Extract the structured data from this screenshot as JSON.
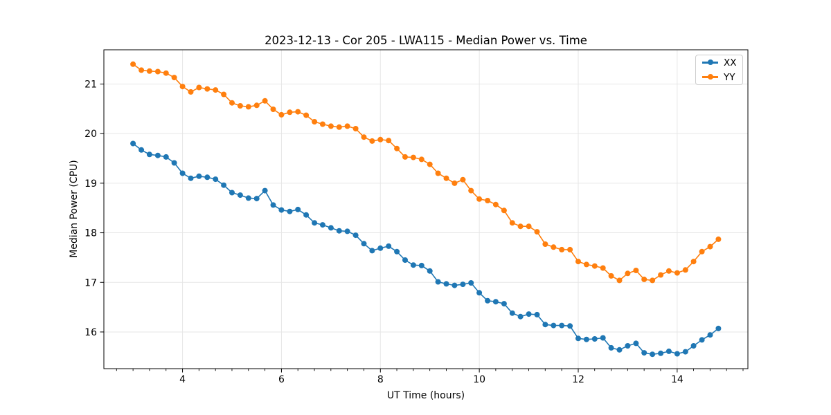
{
  "chart_data": {
    "type": "line",
    "title": "2023-12-13 - Cor 205 - LWA115 - Median Power vs. Time",
    "xlabel": "UT Time (hours)",
    "ylabel": "Median Power (CPU)",
    "xlim": [
      2.41,
      15.43
    ],
    "ylim": [
      15.26,
      21.69
    ],
    "x_major_ticks": [
      4,
      6,
      8,
      10,
      12,
      14
    ],
    "y_major_ticks": [
      16,
      17,
      18,
      19,
      20,
      21
    ],
    "x_minor_step": 0.3333,
    "grid": true,
    "grid_color": "#e6e6e6",
    "legend_position": "upper right",
    "marker": "circle",
    "x": [
      3.0,
      3.167,
      3.333,
      3.5,
      3.667,
      3.833,
      4.0,
      4.167,
      4.333,
      4.5,
      4.667,
      4.833,
      5.0,
      5.167,
      5.333,
      5.5,
      5.667,
      5.833,
      6.0,
      6.167,
      6.333,
      6.5,
      6.667,
      6.833,
      7.0,
      7.167,
      7.333,
      7.5,
      7.667,
      7.833,
      8.0,
      8.167,
      8.333,
      8.5,
      8.667,
      8.833,
      9.0,
      9.167,
      9.333,
      9.5,
      9.667,
      9.833,
      10.0,
      10.167,
      10.333,
      10.5,
      10.667,
      10.833,
      11.0,
      11.167,
      11.333,
      11.5,
      11.667,
      11.833,
      12.0,
      12.167,
      12.333,
      12.5,
      12.667,
      12.833,
      13.0,
      13.167,
      13.333,
      13.5,
      13.667,
      13.833,
      14.0,
      14.167,
      14.333,
      14.5,
      14.667,
      14.833
    ],
    "series": [
      {
        "name": "XX",
        "color": "#1f77b4",
        "values": [
          19.8,
          19.67,
          19.58,
          19.56,
          19.53,
          19.41,
          19.2,
          19.1,
          19.14,
          19.12,
          19.08,
          18.96,
          18.81,
          18.76,
          18.7,
          18.69,
          18.85,
          18.56,
          18.46,
          18.43,
          18.47,
          18.36,
          18.2,
          18.16,
          18.1,
          18.04,
          18.03,
          17.95,
          17.78,
          17.64,
          17.69,
          17.73,
          17.62,
          17.45,
          17.35,
          17.34,
          17.23,
          17.01,
          16.97,
          16.94,
          16.96,
          16.99,
          16.79,
          16.63,
          16.61,
          16.57,
          16.38,
          16.31,
          16.36,
          16.35,
          16.15,
          16.13,
          16.13,
          16.12,
          15.87,
          15.85,
          15.86,
          15.88,
          15.68,
          15.64,
          15.72,
          15.77,
          15.58,
          15.55,
          15.57,
          15.61,
          15.56,
          15.6,
          15.72,
          15.84,
          15.94,
          16.07
        ]
      },
      {
        "name": "YY",
        "color": "#ff7f0e",
        "values": [
          21.4,
          21.28,
          21.26,
          21.25,
          21.22,
          21.13,
          20.95,
          20.84,
          20.93,
          20.9,
          20.88,
          20.79,
          20.62,
          20.56,
          20.54,
          20.57,
          20.66,
          20.49,
          20.38,
          20.43,
          20.44,
          20.37,
          20.24,
          20.19,
          20.15,
          20.13,
          20.15,
          20.1,
          19.93,
          19.85,
          19.88,
          19.86,
          19.7,
          19.53,
          19.52,
          19.48,
          19.38,
          19.2,
          19.1,
          19.0,
          19.07,
          18.85,
          18.68,
          18.65,
          18.57,
          18.45,
          18.2,
          18.13,
          18.13,
          18.02,
          17.77,
          17.71,
          17.66,
          17.66,
          17.42,
          17.36,
          17.33,
          17.29,
          17.13,
          17.04,
          17.18,
          17.24,
          17.06,
          17.04,
          17.15,
          17.23,
          17.19,
          17.25,
          17.42,
          17.62,
          17.72,
          17.87
        ]
      }
    ]
  }
}
